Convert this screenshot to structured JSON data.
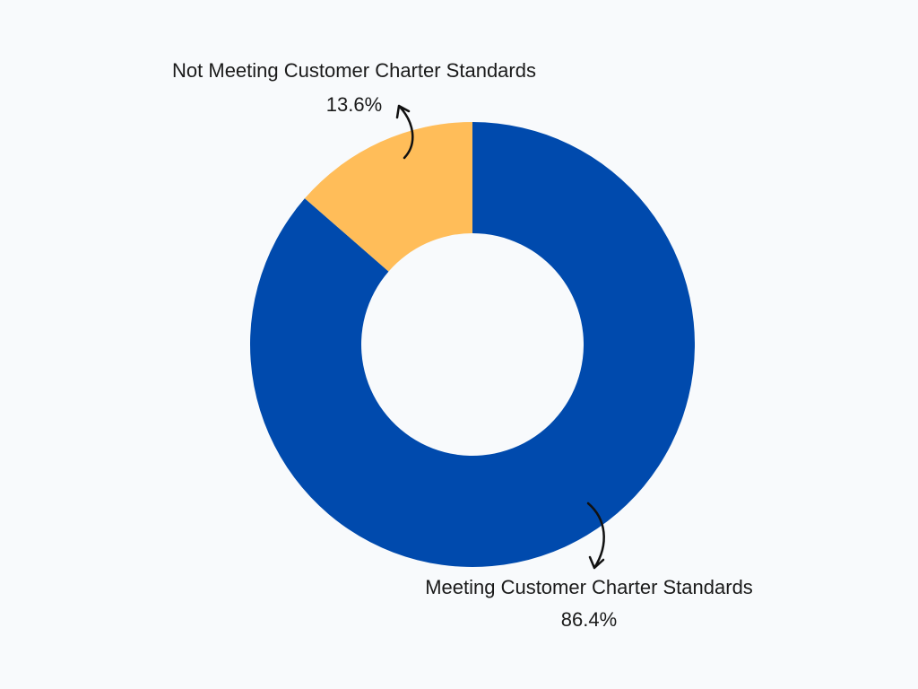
{
  "chart_data": {
    "type": "pie",
    "donut": true,
    "categories": [
      "Meeting Customer Charter Standards",
      "Not Meeting Customer Charter Standards"
    ],
    "values": [
      86.4,
      13.6
    ],
    "value_labels": [
      "86.4%",
      "13.6%"
    ],
    "colors": [
      "#004aad",
      "#ffbd59"
    ],
    "start": "top",
    "direction": "clockwise",
    "legend": "none",
    "title": ""
  },
  "labels": {
    "meeting_name": "Meeting Customer Charter Standards",
    "meeting_value": "86.4%",
    "not_meeting_name": "Not Meeting Customer Charter Standards",
    "not_meeting_value": "13.6%"
  }
}
